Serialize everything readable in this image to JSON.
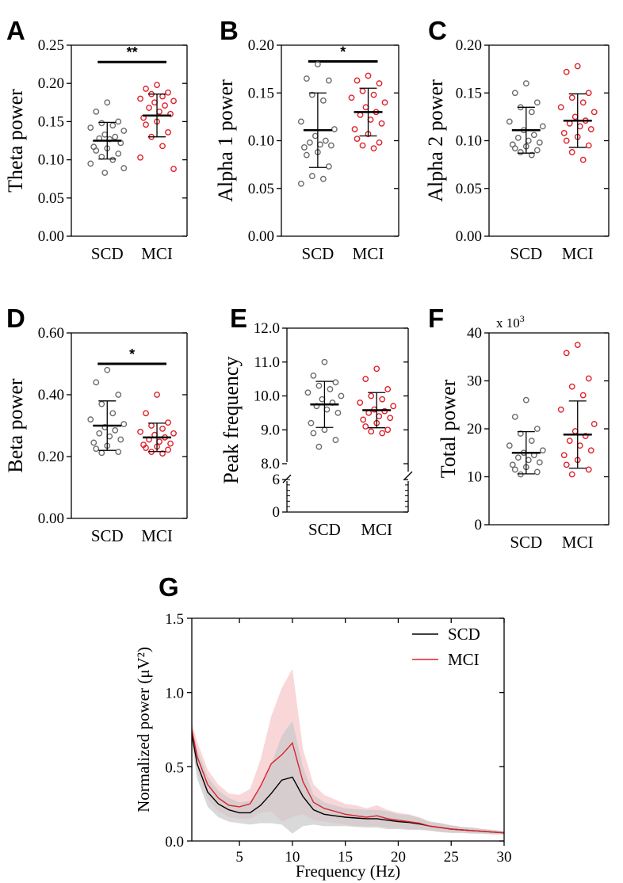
{
  "colors": {
    "scd": "#6b6b6b",
    "mci": "#e0202a",
    "axis": "#000000",
    "scd_band": "#c9c9c9",
    "mci_band": "#f6c2c4"
  },
  "chart_data": [
    {
      "type": "scatter",
      "panel": "A",
      "ylabel": "Theta power",
      "categories": [
        "SCD",
        "MCI"
      ],
      "ylim": [
        0,
        0.25
      ],
      "yticks": [
        0.0,
        0.05,
        0.1,
        0.15,
        0.2,
        0.25
      ],
      "ytick_labels": [
        "0.00",
        "0.05",
        "0.10",
        "0.15",
        "0.20",
        "0.25"
      ],
      "significance": {
        "label": "**",
        "y": 0.228
      },
      "series": [
        {
          "name": "SCD",
          "mean": 0.125,
          "sd": 0.024,
          "values": [
            0.175,
            0.163,
            0.15,
            0.148,
            0.145,
            0.142,
            0.138,
            0.133,
            0.13,
            0.128,
            0.127,
            0.122,
            0.117,
            0.115,
            0.112,
            0.108,
            0.104,
            0.1,
            0.095,
            0.089,
            0.083
          ]
        },
        {
          "name": "MCI",
          "mean": 0.158,
          "sd": 0.028,
          "values": [
            0.198,
            0.193,
            0.188,
            0.186,
            0.183,
            0.18,
            0.177,
            0.175,
            0.171,
            0.168,
            0.163,
            0.16,
            0.155,
            0.15,
            0.146,
            0.136,
            0.13,
            0.118,
            0.103,
            0.088
          ]
        }
      ]
    },
    {
      "type": "scatter",
      "panel": "B",
      "ylabel": "Alpha 1 power",
      "categories": [
        "SCD",
        "MCI"
      ],
      "ylim": [
        0,
        0.2
      ],
      "yticks": [
        0.0,
        0.05,
        0.1,
        0.15,
        0.2
      ],
      "ytick_labels": [
        "0.00",
        "0.05",
        "0.10",
        "0.15",
        "0.20"
      ],
      "significance": {
        "label": "*",
        "y": 0.183
      },
      "series": [
        {
          "name": "SCD",
          "mean": 0.111,
          "sd": 0.039,
          "values": [
            0.18,
            0.165,
            0.163,
            0.148,
            0.142,
            0.12,
            0.112,
            0.105,
            0.1,
            0.098,
            0.096,
            0.095,
            0.093,
            0.088,
            0.085,
            0.073,
            0.063,
            0.06,
            0.055
          ]
        },
        {
          "name": "MCI",
          "mean": 0.13,
          "sd": 0.025,
          "values": [
            0.168,
            0.163,
            0.16,
            0.152,
            0.148,
            0.145,
            0.14,
            0.135,
            0.13,
            0.127,
            0.122,
            0.118,
            0.112,
            0.107,
            0.102,
            0.098,
            0.095,
            0.092
          ]
        }
      ]
    },
    {
      "type": "scatter",
      "panel": "C",
      "ylabel": "Alpha 2 power",
      "categories": [
        "SCD",
        "MCI"
      ],
      "ylim": [
        0,
        0.2
      ],
      "yticks": [
        0.0,
        0.05,
        0.1,
        0.15,
        0.2
      ],
      "ytick_labels": [
        "0.00",
        "0.05",
        "0.10",
        "0.15",
        "0.20"
      ],
      "series": [
        {
          "name": "SCD",
          "mean": 0.111,
          "sd": 0.024,
          "values": [
            0.16,
            0.15,
            0.14,
            0.135,
            0.13,
            0.12,
            0.115,
            0.111,
            0.106,
            0.103,
            0.1,
            0.098,
            0.096,
            0.094,
            0.092,
            0.09,
            0.088,
            0.085
          ]
        },
        {
          "name": "MCI",
          "mean": 0.121,
          "sd": 0.028,
          "values": [
            0.178,
            0.172,
            0.15,
            0.145,
            0.14,
            0.135,
            0.13,
            0.125,
            0.121,
            0.118,
            0.115,
            0.112,
            0.108,
            0.104,
            0.1,
            0.095,
            0.088,
            0.08
          ]
        }
      ]
    },
    {
      "type": "scatter",
      "panel": "D",
      "ylabel": "Beta power",
      "categories": [
        "SCD",
        "MCI"
      ],
      "ylim": [
        0,
        0.6
      ],
      "yticks": [
        0.0,
        0.2,
        0.4,
        0.6
      ],
      "ytick_labels": [
        "0.00",
        "0.20",
        "0.40",
        "0.60"
      ],
      "significance": {
        "label": "*",
        "y": 0.5
      },
      "series": [
        {
          "name": "SCD",
          "mean": 0.3,
          "sd": 0.08,
          "values": [
            0.48,
            0.44,
            0.4,
            0.37,
            0.34,
            0.32,
            0.305,
            0.295,
            0.285,
            0.275,
            0.265,
            0.255,
            0.245,
            0.235,
            0.225,
            0.215,
            0.212
          ]
        },
        {
          "name": "MCI",
          "mean": 0.262,
          "sd": 0.046,
          "values": [
            0.4,
            0.34,
            0.31,
            0.3,
            0.29,
            0.28,
            0.275,
            0.27,
            0.262,
            0.255,
            0.248,
            0.242,
            0.238,
            0.232,
            0.228,
            0.222,
            0.215,
            0.21
          ]
        }
      ]
    },
    {
      "type": "scatter",
      "panel": "E",
      "ylabel": "Peak frequency",
      "categories": [
        "SCD",
        "MCI"
      ],
      "broken_axis": true,
      "segments": [
        {
          "range": [
            0,
            6
          ]
        },
        {
          "range": [
            8,
            12
          ]
        }
      ],
      "yticks": [
        0,
        6,
        8.0,
        9.0,
        10.0,
        11.0,
        12.0
      ],
      "ytick_labels": [
        "0",
        "6",
        "8.0",
        "9.0",
        "10.0",
        "11.0",
        "12.0"
      ],
      "series": [
        {
          "name": "SCD",
          "mean": 9.75,
          "sd": 0.68,
          "values": [
            11.0,
            10.6,
            10.4,
            10.3,
            10.2,
            10.1,
            10.0,
            9.9,
            9.8,
            9.7,
            9.6,
            9.5,
            9.2,
            9.0,
            8.9,
            8.7,
            8.5
          ]
        },
        {
          "name": "MCI",
          "mean": 9.58,
          "sd": 0.52,
          "values": [
            10.8,
            10.5,
            10.2,
            10.0,
            9.9,
            9.8,
            9.7,
            9.6,
            9.55,
            9.5,
            9.4,
            9.35,
            9.3,
            9.2,
            9.1,
            9.0,
            8.95,
            8.9
          ]
        }
      ]
    },
    {
      "type": "scatter",
      "panel": "F",
      "ylabel": "Total power",
      "y_multiplier": "x 10",
      "y_multiplier_exp": "3",
      "categories": [
        "SCD",
        "MCI"
      ],
      "ylim": [
        0,
        40
      ],
      "yticks": [
        0,
        10,
        20,
        30,
        40
      ],
      "ytick_labels": [
        "0",
        "10",
        "20",
        "30",
        "40"
      ],
      "series": [
        {
          "name": "SCD",
          "mean": 15.0,
          "sd": 4.4,
          "values": [
            26.0,
            22.5,
            20.0,
            19.0,
            17.5,
            16.5,
            15.5,
            15.0,
            14.5,
            14.0,
            13.5,
            13.0,
            12.5,
            12.0,
            11.5,
            11.0,
            10.5
          ]
        },
        {
          "name": "MCI",
          "mean": 18.8,
          "sd": 7.0,
          "values": [
            37.5,
            35.8,
            30.5,
            28.8,
            27.0,
            24.0,
            21.0,
            19.5,
            18.5,
            17.5,
            16.5,
            15.5,
            14.5,
            13.5,
            12.5,
            11.5,
            10.5
          ]
        }
      ]
    },
    {
      "type": "line",
      "panel": "G",
      "xlabel": "Frequency (Hz)",
      "ylabel": "Normalized power (μV²)",
      "xlim": [
        0.5,
        30
      ],
      "ylim": [
        0,
        1.5
      ],
      "xticks": [
        5,
        10,
        15,
        20,
        25,
        30
      ],
      "xtick_labels": [
        "5",
        "10",
        "15",
        "20",
        "25",
        "30"
      ],
      "yticks": [
        0.0,
        0.5,
        1.0,
        1.5
      ],
      "ytick_labels": [
        "0.0",
        "0.5",
        "1.0",
        "1.5"
      ],
      "legend": [
        "SCD",
        "MCI"
      ],
      "legend_position": "top-right",
      "x": [
        0.5,
        1,
        2,
        3,
        4,
        5,
        6,
        7,
        8,
        9,
        10,
        11,
        12,
        13,
        14,
        15,
        16,
        17,
        18,
        19,
        20,
        21,
        22,
        23,
        24,
        25,
        26,
        27,
        28,
        29,
        30
      ],
      "series": [
        {
          "name": "SCD",
          "mean": [
            0.72,
            0.52,
            0.33,
            0.25,
            0.21,
            0.19,
            0.19,
            0.24,
            0.32,
            0.41,
            0.43,
            0.3,
            0.21,
            0.18,
            0.17,
            0.16,
            0.155,
            0.15,
            0.15,
            0.14,
            0.13,
            0.125,
            0.115,
            0.1,
            0.09,
            0.08,
            0.075,
            0.07,
            0.065,
            0.06,
            0.055
          ],
          "sd": [
            0.05,
            0.1,
            0.1,
            0.09,
            0.08,
            0.07,
            0.08,
            0.12,
            0.2,
            0.3,
            0.38,
            0.2,
            0.1,
            0.08,
            0.07,
            0.06,
            0.06,
            0.06,
            0.06,
            0.06,
            0.05,
            0.05,
            0.04,
            0.03,
            0.03,
            0.025,
            0.02,
            0.02,
            0.015,
            0.015,
            0.01
          ]
        },
        {
          "name": "MCI",
          "mean": [
            0.75,
            0.57,
            0.38,
            0.29,
            0.24,
            0.23,
            0.25,
            0.37,
            0.52,
            0.58,
            0.66,
            0.4,
            0.26,
            0.22,
            0.2,
            0.18,
            0.17,
            0.16,
            0.17,
            0.15,
            0.14,
            0.13,
            0.12,
            0.1,
            0.09,
            0.08,
            0.075,
            0.07,
            0.065,
            0.06,
            0.055
          ],
          "sd": [
            0.05,
            0.1,
            0.1,
            0.09,
            0.08,
            0.08,
            0.1,
            0.18,
            0.32,
            0.45,
            0.5,
            0.22,
            0.12,
            0.09,
            0.08,
            0.07,
            0.07,
            0.06,
            0.07,
            0.06,
            0.05,
            0.05,
            0.04,
            0.03,
            0.03,
            0.025,
            0.02,
            0.02,
            0.015,
            0.015,
            0.01
          ]
        }
      ]
    }
  ]
}
